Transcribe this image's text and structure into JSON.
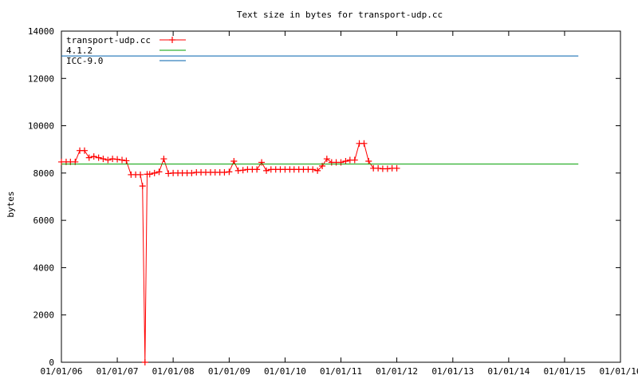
{
  "chart_data": {
    "type": "line",
    "title": "Text size in bytes for transport-udp.cc",
    "xlabel": "",
    "ylabel": "bytes",
    "x_axis_type": "date",
    "xlim": [
      "2006-01-01",
      "2016-01-01"
    ],
    "ylim": [
      0,
      14000
    ],
    "x_tick_labels": [
      "01/01/06",
      "01/01/07",
      "01/01/08",
      "01/01/09",
      "01/01/10",
      "01/01/11",
      "01/01/12",
      "01/01/13",
      "01/01/14",
      "01/01/15",
      "01/01/16"
    ],
    "x_tick_dates": [
      "2006-01-01",
      "2007-01-01",
      "2008-01-01",
      "2009-01-01",
      "2010-01-01",
      "2011-01-01",
      "2012-01-01",
      "2013-01-01",
      "2014-01-01",
      "2015-01-01",
      "2016-01-01"
    ],
    "y_ticks": [
      0,
      2000,
      4000,
      6000,
      8000,
      10000,
      12000,
      14000
    ],
    "y_tick_labels": [
      "0",
      "2000",
      "4000",
      "6000",
      "8000",
      "10000",
      "12000",
      "14000"
    ],
    "grid": false,
    "legend_position": "top-left",
    "series": [
      {
        "name": "transport-udp.cc",
        "color": "#ff0000",
        "marker": "plus",
        "points": [
          [
            "2006-01-01",
            8470
          ],
          [
            "2006-02-01",
            8470
          ],
          [
            "2006-03-01",
            8470
          ],
          [
            "2006-04-01",
            8470
          ],
          [
            "2006-05-01",
            8950
          ],
          [
            "2006-06-01",
            8950
          ],
          [
            "2006-07-01",
            8650
          ],
          [
            "2006-08-01",
            8700
          ],
          [
            "2006-09-01",
            8650
          ],
          [
            "2006-10-01",
            8600
          ],
          [
            "2006-11-01",
            8550
          ],
          [
            "2006-12-01",
            8600
          ],
          [
            "2007-01-01",
            8580
          ],
          [
            "2007-02-01",
            8550
          ],
          [
            "2007-03-01",
            8520
          ],
          [
            "2007-04-01",
            7930
          ],
          [
            "2007-05-01",
            7930
          ],
          [
            "2007-06-01",
            7930
          ],
          [
            "2007-06-15",
            7450
          ],
          [
            "2007-07-01",
            0
          ],
          [
            "2007-07-15",
            7950
          ],
          [
            "2007-08-01",
            7950
          ],
          [
            "2007-09-01",
            8000
          ],
          [
            "2007-10-01",
            8050
          ],
          [
            "2007-11-01",
            8600
          ],
          [
            "2007-12-01",
            7980
          ],
          [
            "2008-01-01",
            8000
          ],
          [
            "2008-02-01",
            8000
          ],
          [
            "2008-03-01",
            8000
          ],
          [
            "2008-04-01",
            8000
          ],
          [
            "2008-05-01",
            8000
          ],
          [
            "2008-06-01",
            8030
          ],
          [
            "2008-07-01",
            8030
          ],
          [
            "2008-08-01",
            8030
          ],
          [
            "2008-09-01",
            8030
          ],
          [
            "2008-10-01",
            8030
          ],
          [
            "2008-11-01",
            8030
          ],
          [
            "2008-12-01",
            8030
          ],
          [
            "2009-01-01",
            8050
          ],
          [
            "2009-02-01",
            8500
          ],
          [
            "2009-03-01",
            8100
          ],
          [
            "2009-04-01",
            8120
          ],
          [
            "2009-05-01",
            8150
          ],
          [
            "2009-06-01",
            8150
          ],
          [
            "2009-07-01",
            8150
          ],
          [
            "2009-08-01",
            8450
          ],
          [
            "2009-09-01",
            8100
          ],
          [
            "2009-10-01",
            8150
          ],
          [
            "2009-11-01",
            8150
          ],
          [
            "2009-12-01",
            8150
          ],
          [
            "2010-01-01",
            8150
          ],
          [
            "2010-02-01",
            8150
          ],
          [
            "2010-03-01",
            8150
          ],
          [
            "2010-04-01",
            8150
          ],
          [
            "2010-05-01",
            8150
          ],
          [
            "2010-06-01",
            8150
          ],
          [
            "2010-07-01",
            8150
          ],
          [
            "2010-08-01",
            8100
          ],
          [
            "2010-09-01",
            8300
          ],
          [
            "2010-10-01",
            8600
          ],
          [
            "2010-11-01",
            8450
          ],
          [
            "2010-12-01",
            8450
          ],
          [
            "2011-01-01",
            8450
          ],
          [
            "2011-02-01",
            8500
          ],
          [
            "2011-03-01",
            8550
          ],
          [
            "2011-04-01",
            8550
          ],
          [
            "2011-05-01",
            9250
          ],
          [
            "2011-06-01",
            9250
          ],
          [
            "2011-07-01",
            8500
          ],
          [
            "2011-08-01",
            8200
          ],
          [
            "2011-09-01",
            8200
          ],
          [
            "2011-10-01",
            8180
          ],
          [
            "2011-11-01",
            8180
          ],
          [
            "2011-12-01",
            8200
          ],
          [
            "2012-01-01",
            8200
          ]
        ]
      },
      {
        "name": "4.1.2",
        "color": "#00a000",
        "marker": "none",
        "points": [
          [
            "2006-01-01",
            8380
          ],
          [
            "2007-04-01",
            8380
          ],
          [
            "2007-04-01",
            8380
          ],
          [
            "2015-04-01",
            8380
          ]
        ]
      },
      {
        "name": "ICC-9.0",
        "color": "#0060ad",
        "marker": "none",
        "points": [
          [
            "2006-01-01",
            12950
          ],
          [
            "2015-04-01",
            12950
          ]
        ]
      }
    ]
  }
}
